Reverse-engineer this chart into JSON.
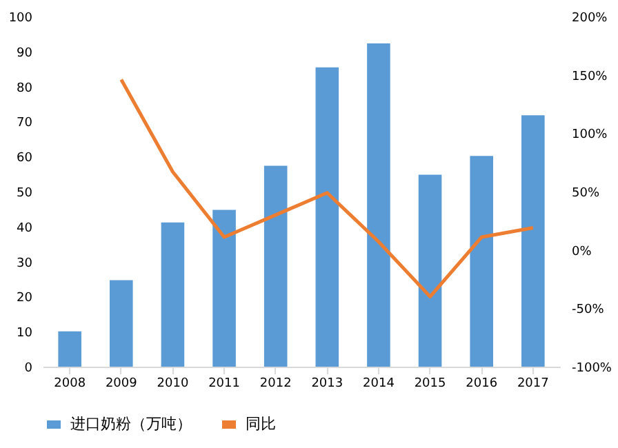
{
  "chart_data": {
    "type": "bar",
    "categories": [
      "2008",
      "2009",
      "2010",
      "2011",
      "2012",
      "2013",
      "2014",
      "2015",
      "2016",
      "2017"
    ],
    "series": [
      {
        "name": "进口奶粉（万吨）",
        "color": "#5b9bd5",
        "values": [
          10.1,
          24.7,
          41.2,
          44.8,
          57.4,
          85.5,
          92.3,
          54.8,
          60.2,
          71.8
        ]
      },
      {
        "name": "同比",
        "color": "#ed7d31",
        "type": "line",
        "axis": "y2",
        "values": [
          null,
          146,
          67,
          11,
          30,
          49,
          7,
          -40,
          11,
          19
        ]
      }
    ],
    "ylim": [
      0,
      100
    ],
    "yticks": [
      0,
      10,
      20,
      30,
      40,
      50,
      60,
      70,
      80,
      90,
      100
    ],
    "y2lim": [
      -100,
      200
    ],
    "y2ticks": [
      {
        "value": -100,
        "label": "-100%"
      },
      {
        "value": -50,
        "label": "-50%"
      },
      {
        "value": 0,
        "label": "0%"
      },
      {
        "value": 50,
        "label": "50%"
      },
      {
        "value": 100,
        "label": "100%"
      },
      {
        "value": 150,
        "label": "150%"
      },
      {
        "value": 200,
        "label": "200%"
      }
    ],
    "grid": false,
    "legend": "bottom",
    "marker": "none",
    "line_style": "solid"
  }
}
